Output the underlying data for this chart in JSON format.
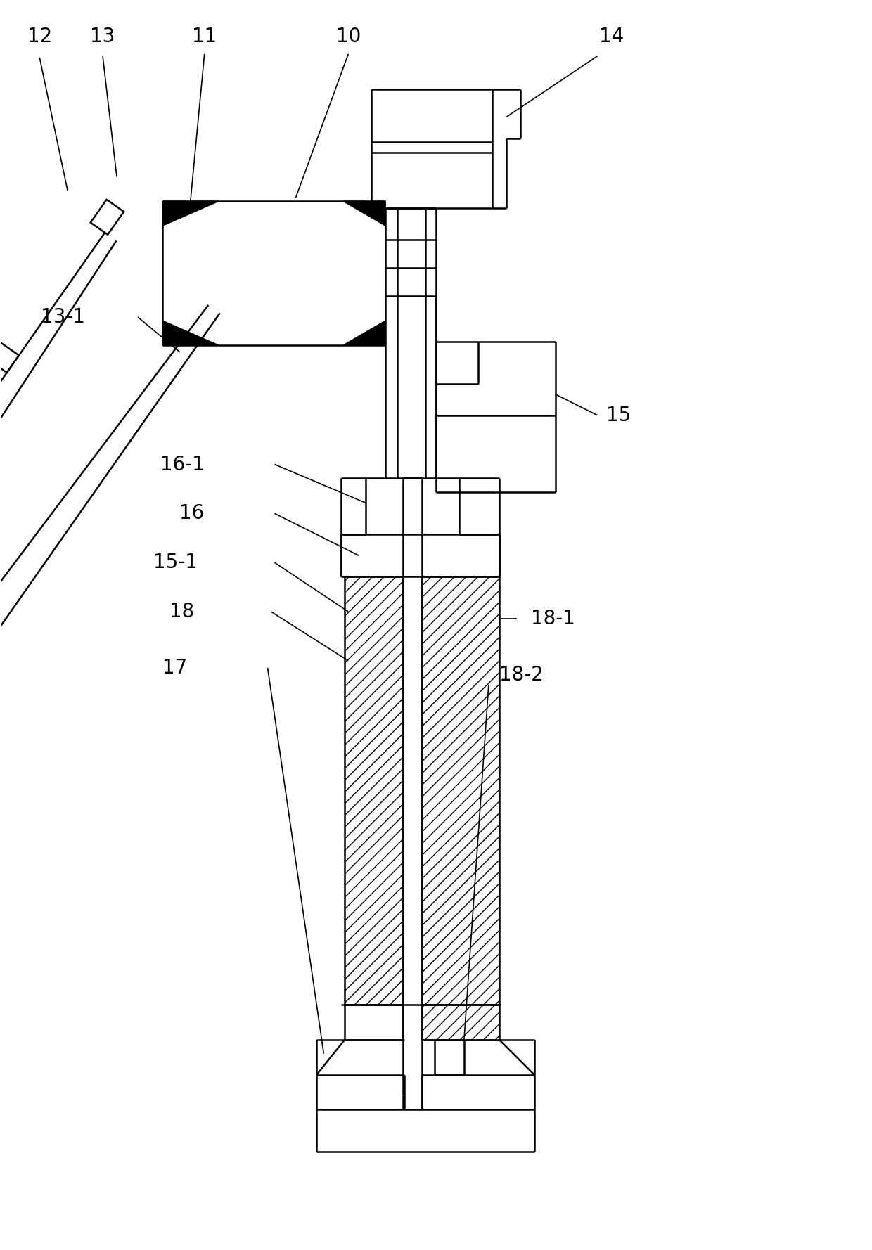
{
  "bg_color": "#ffffff",
  "line_color": "#000000",
  "lw": 1.8,
  "lw_thin": 1.2,
  "fs": 20,
  "fig_w": 12.4,
  "fig_h": 17.78,
  "dpi": 100
}
